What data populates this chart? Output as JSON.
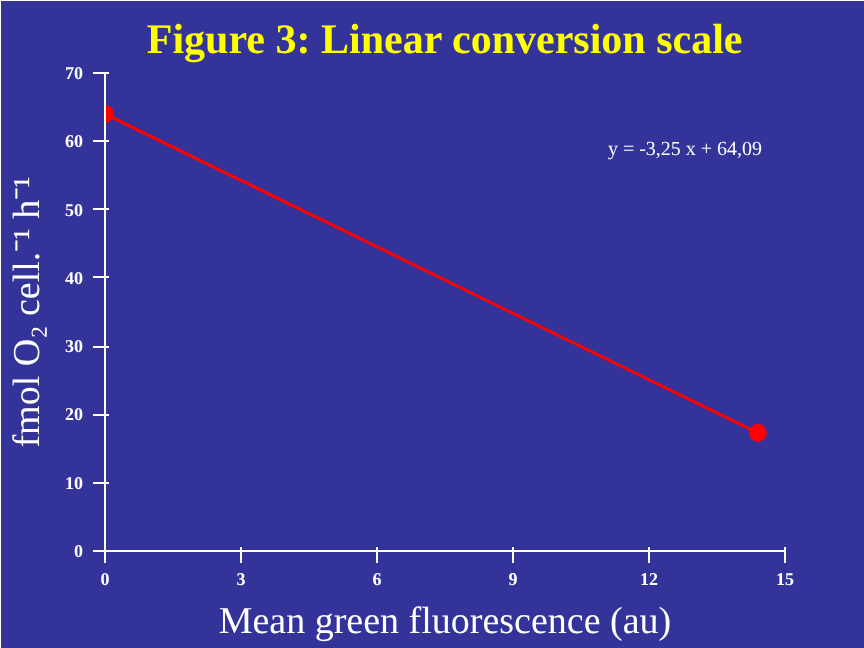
{
  "chart_data": {
    "type": "line",
    "title": "Figure 3: Linear conversion scale",
    "xlabel": "Mean green fluorescence (au)",
    "ylabel": "fmol O₂ cell.⁻¹ h⁻¹",
    "x": [
      0,
      14.4
    ],
    "series": [
      {
        "color": "#ff0000",
        "values": [
          64,
          17.3
        ]
      }
    ],
    "xlim": [
      0,
      15
    ],
    "xticks": [
      0,
      3,
      6,
      9,
      12,
      15
    ],
    "ylim": [
      0,
      70
    ],
    "yticks": [
      0,
      10,
      20,
      30,
      40,
      50,
      60,
      70
    ],
    "marker": "circle",
    "line_style": "solid",
    "grid": false,
    "annotations": [
      "y = -3,25 x + 64,09"
    ]
  }
}
